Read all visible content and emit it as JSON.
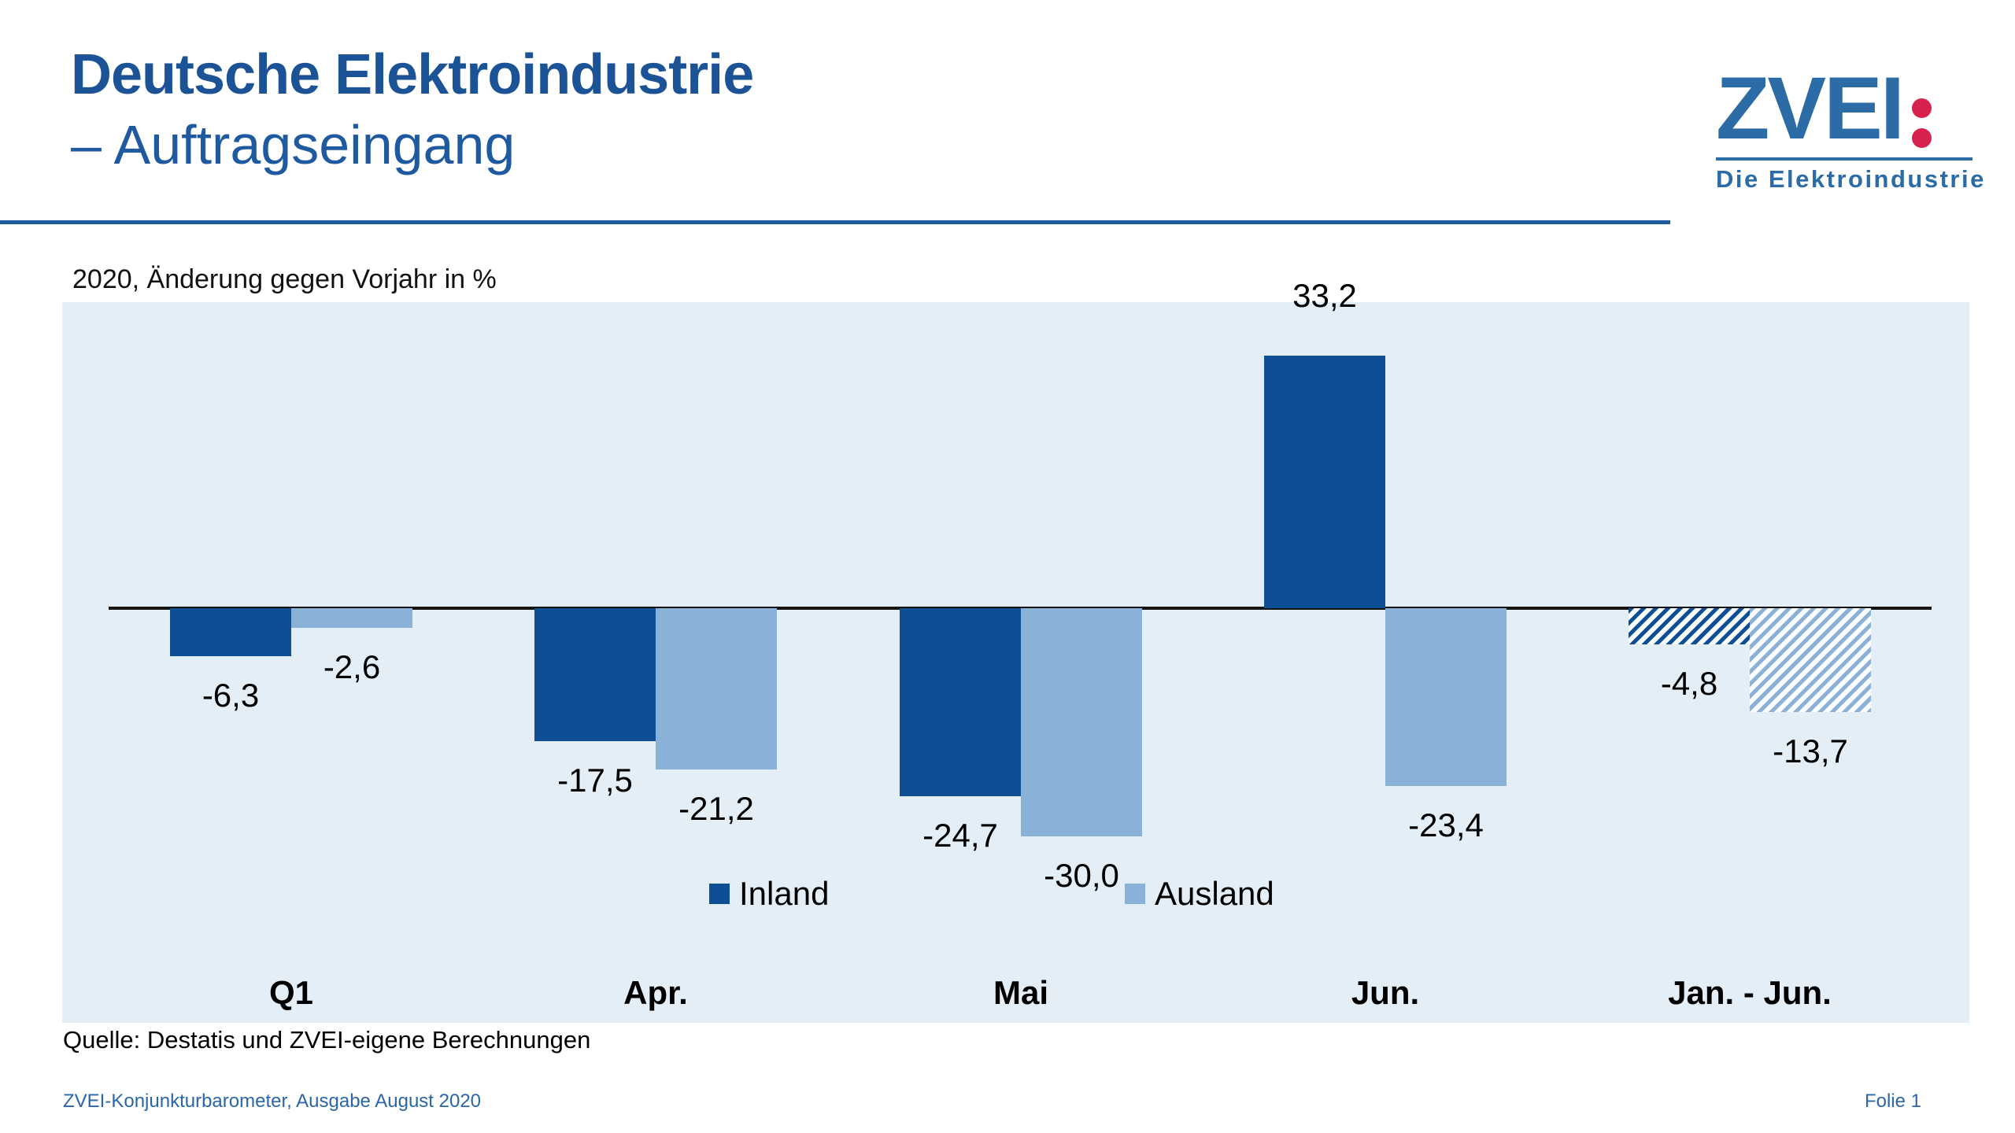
{
  "header": {
    "title_line1": "Deutsche Elektroindustrie",
    "title_line2": "– Auftragseingang"
  },
  "logo": {
    "wordmark": "ZVEI",
    "tagline": "Die Elektroindustrie",
    "blue": "#2b6ba6",
    "red": "#d6224c"
  },
  "subtitle": "2020, Änderung gegen Vorjahr in %",
  "chart_data": {
    "type": "bar",
    "title": "Deutsche Elektroindustrie – Auftragseingang",
    "subtitle": "2020, Änderung gegen Vorjahr in %",
    "categories": [
      "Q1",
      "Apr.",
      "Mai",
      "Jun.",
      "Jan. - Jun."
    ],
    "series": [
      {
        "name": "Inland",
        "color": "#0d4e94",
        "values": [
          -6.3,
          -17.5,
          -24.7,
          33.2,
          -4.8
        ]
      },
      {
        "name": "Ausland",
        "color": "#8ab1d7",
        "values": [
          -2.6,
          -21.2,
          -30.0,
          -23.4,
          -13.7
        ]
      }
    ],
    "value_labels": [
      [
        "-6,3",
        "-17,5",
        "-24,7",
        "33,2",
        "-4,8"
      ],
      [
        "-2,6",
        "-21,2",
        "-30,0",
        "-23,4",
        "-13,7"
      ]
    ],
    "hatched_categories": [
      "Jan. - Jun."
    ],
    "unit": "%",
    "baseline": 0,
    "grid": false,
    "legend_position": "bottom-center-inside",
    "plot_background": "#e4eef6",
    "axis_color": "#141414"
  },
  "legend": {
    "items": [
      {
        "label": "Inland"
      },
      {
        "label": "Ausland"
      }
    ]
  },
  "source": "Quelle: Destatis und ZVEI-eigene Berechnungen",
  "footer": {
    "left": "ZVEI-Konjunkturbarometer, Ausgabe August 2020",
    "right": "Folie 1"
  }
}
